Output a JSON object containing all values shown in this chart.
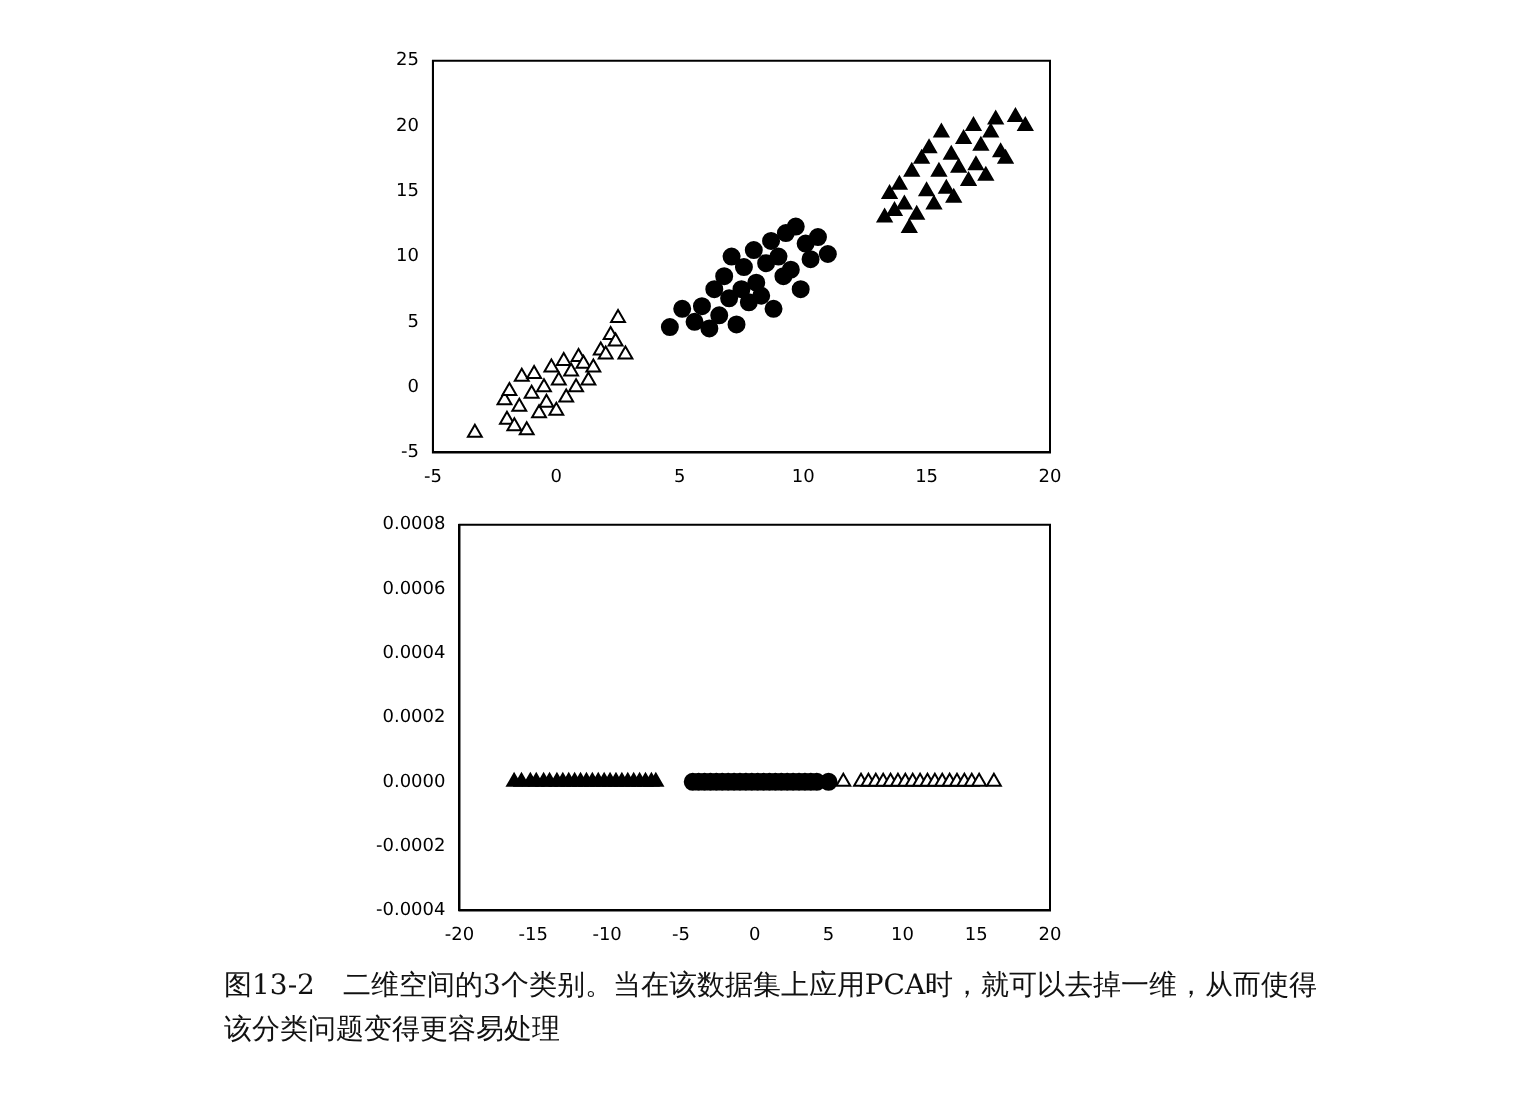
{
  "chart_data": [
    {
      "type": "scatter",
      "xlim": [
        -5,
        20
      ],
      "xticks": [
        -5,
        0,
        5,
        10,
        15,
        20
      ],
      "ylim": [
        -5,
        25
      ],
      "yticks": [
        -5,
        0,
        5,
        10,
        15,
        20,
        25
      ],
      "grid": false,
      "legend": false,
      "series": [
        {
          "color": "#ffffff",
          "marker": "triangle",
          "x": [
            -3.3,
            -2.1,
            -2,
            -1.9,
            -1.7,
            -1.5,
            -1.4,
            -1.2,
            -1,
            -0.9,
            -0.7,
            -0.5,
            -0.4,
            -0.2,
            0,
            0.1,
            0.3,
            0.4,
            0.6,
            0.8,
            0.9,
            1.1,
            1.3,
            1.5,
            1.8,
            2,
            2.2,
            2.4,
            2.5,
            2.8
          ],
          "values": [
            -3.5,
            -1,
            -2.5,
            -0.3,
            -3,
            -1.5,
            0.8,
            -3.3,
            -0.5,
            1,
            -2,
            0,
            -1.2,
            1.5,
            -1.8,
            0.5,
            2,
            -0.8,
            1.2,
            0,
            2.3,
            1.8,
            0.5,
            1.5,
            2.8,
            2.5,
            4,
            3.5,
            5.3,
            2.5
          ]
        },
        {
          "color": "#000000",
          "marker": "circle",
          "x": [
            4.6,
            5.1,
            5.6,
            5.9,
            6.2,
            6.4,
            6.6,
            6.8,
            7,
            7.1,
            7.3,
            7.5,
            7.6,
            7.8,
            8,
            8.1,
            8.3,
            8.5,
            8.7,
            8.8,
            9,
            9.2,
            9.3,
            9.5,
            9.7,
            9.9,
            10.1,
            10.3,
            10.6,
            11
          ],
          "values": [
            4.6,
            6,
            5,
            6.2,
            4.5,
            7.5,
            5.5,
            8.5,
            6.8,
            10,
            4.8,
            7.5,
            9.2,
            6.5,
            10.5,
            8,
            7,
            9.5,
            11.2,
            6,
            10,
            8.5,
            11.8,
            9,
            12.3,
            7.5,
            11,
            9.8,
            11.5,
            10.2
          ]
        },
        {
          "color": "#000000",
          "marker": "triangle",
          "x": [
            13.3,
            13.5,
            13.7,
            13.9,
            14.1,
            14.3,
            14.4,
            14.6,
            14.8,
            15,
            15.1,
            15.3,
            15.5,
            15.6,
            15.8,
            16,
            16.1,
            16.3,
            16.5,
            16.7,
            16.9,
            17,
            17.2,
            17.4,
            17.6,
            17.8,
            18,
            18.2,
            18.6,
            19
          ],
          "values": [
            13,
            14.8,
            13.5,
            15.5,
            14,
            12.2,
            16.5,
            13.2,
            17.5,
            15,
            18.3,
            14,
            16.5,
            19.5,
            15.2,
            17.8,
            14.5,
            16.8,
            19,
            15.8,
            20,
            17,
            18.5,
            16.2,
            19.5,
            20.5,
            18,
            17.5,
            20.7,
            20
          ]
        }
      ]
    },
    {
      "type": "scatter",
      "xlim": [
        -20,
        20
      ],
      "xticks": [
        -20,
        -15,
        -10,
        -5,
        0,
        5,
        10,
        15,
        20
      ],
      "ylim": [
        -0.0004,
        0.0008
      ],
      "yticks": [
        {
          "value": -0.0004,
          "label": "-0.0004"
        },
        {
          "value": -0.0002,
          "label": "-0.0002"
        },
        {
          "value": 0,
          "label": "0.0000"
        },
        {
          "value": 0.0002,
          "label": "0.0002"
        },
        {
          "value": 0.0004,
          "label": "0.0004"
        },
        {
          "value": 0.0006,
          "label": "0.0006"
        },
        {
          "value": 0.0008,
          "label": "0.0008"
        }
      ],
      "grid": false,
      "legend": false,
      "annotations": [
        "图13-2　二维空间的3个类别。当在该数据集上应用PCA时，就可以去掉一维，从而使得该分类问题变得更容易处理"
      ],
      "series": [
        {
          "color": "#000000",
          "marker": "triangle",
          "x": [
            -16.3,
            -15.8,
            -15.2,
            -14.8,
            -14.3,
            -13.9,
            -13.4,
            -13,
            -12.6,
            -12.2,
            -11.8,
            -11.4,
            -11,
            -10.6,
            -10.2,
            -9.8,
            -9.4,
            -9,
            -8.6,
            -8.2,
            -7.8,
            -7.4,
            -7,
            -6.7
          ],
          "values": [
            0,
            0,
            0,
            0,
            0,
            0,
            0,
            0,
            0,
            0,
            0,
            0,
            0,
            0,
            0,
            0,
            0,
            0,
            0,
            0,
            0,
            0,
            0,
            0
          ]
        },
        {
          "color": "#000000",
          "marker": "circle",
          "x": [
            -4.2,
            -3.8,
            -3.4,
            -3,
            -2.6,
            -2.2,
            -1.8,
            -1.4,
            -1,
            -0.6,
            -0.2,
            0.2,
            0.6,
            1,
            1.4,
            1.8,
            2.2,
            2.6,
            3,
            3.4,
            3.8,
            4.2,
            5
          ],
          "values": [
            0,
            0,
            0,
            0,
            0,
            0,
            0,
            0,
            0,
            0,
            0,
            0,
            0,
            0,
            0,
            0,
            0,
            0,
            0,
            0,
            0,
            0,
            0
          ]
        },
        {
          "color": "#ffffff",
          "marker": "triangle",
          "x": [
            6,
            7.2,
            7.7,
            8.2,
            8.7,
            9.2,
            9.7,
            10.2,
            10.7,
            11.2,
            11.7,
            12.2,
            12.7,
            13.2,
            13.7,
            14.2,
            14.7,
            15.2,
            16.2
          ],
          "values": [
            0,
            0,
            0,
            0,
            0,
            0,
            0,
            0,
            0,
            0,
            0,
            0,
            0,
            0,
            0,
            0,
            0,
            0,
            0
          ]
        }
      ]
    }
  ]
}
